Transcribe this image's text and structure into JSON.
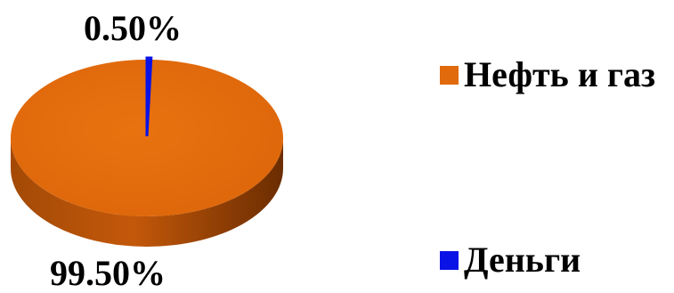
{
  "chart_data": {
    "type": "pie",
    "style": "3d",
    "categories": [
      "Нефть и газ",
      "Деньги"
    ],
    "values": [
      99.5,
      0.5
    ],
    "data_labels": [
      "99.50%",
      "0.50%"
    ],
    "colors": [
      "#e06a0c",
      "#0a13e6"
    ],
    "legend_position": "right",
    "title": ""
  }
}
